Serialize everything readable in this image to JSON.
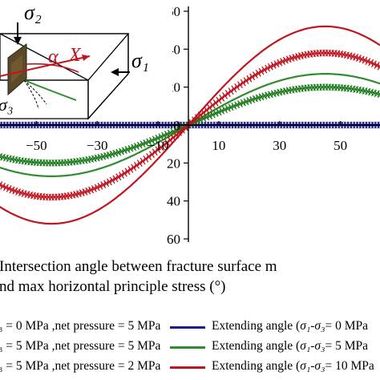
{
  "chart_data": {
    "type": "line",
    "xlabel_line1": "Intersection angle between fracture surface m",
    "xlabel_line2": "nd max horizontal principle stress (°)",
    "x_ticks": [
      "−50",
      "−30",
      "−10",
      "10",
      "30",
      "50"
    ],
    "x_tick_values": [
      -50,
      -30,
      -10,
      10,
      30,
      50
    ],
    "y_ticks": [
      "60",
      "40",
      "20",
      "0",
      "20",
      "40",
      "60"
    ],
    "y_tick_values": [
      60,
      40,
      20,
      0,
      -20,
      -40,
      -60
    ],
    "ylim": [
      -60,
      60
    ],
    "xlim": [
      -63,
      63
    ],
    "series": [
      {
        "key": "ext0",
        "color": "#1a1a8a",
        "style": "line",
        "amplitude": 0
      },
      {
        "key": "ext5",
        "color": "#2e8b2e",
        "style": "line",
        "amplitude": 27
      },
      {
        "key": "ext10",
        "color": "#c0141e",
        "style": "line",
        "amplitude": 52
      },
      {
        "key": "sym0",
        "color": "#1a1a8a",
        "style": "markers",
        "amplitude": 0
      },
      {
        "key": "sym5",
        "color": "#1e7a1e",
        "style": "markers",
        "amplitude": 20
      },
      {
        "key": "sym10",
        "color": "#c0141e",
        "style": "markers",
        "amplitude": 38
      }
    ],
    "legend": {
      "left": [
        {
          "text": "₃ = 0 MPa ,net pressure = 5 MPa",
          "color": "#1a1a8a",
          "style": "markers"
        },
        {
          "text": "₃ = 5 MPa ,net pressure = 5 MPa",
          "color": "#1e7a1e",
          "style": "markers"
        },
        {
          "text": "₃ = 5 MPa ,net pressure = 2 MPa",
          "color": "#c0141e",
          "style": "markers"
        }
      ],
      "right": [
        {
          "prefix": "Extending angle (",
          "sig1": "σ₁",
          "dash": "-",
          "sig3": "σ₃",
          "suffix": "= 0 MPa",
          "color": "#1a1a8a"
        },
        {
          "prefix": "Extending angle (",
          "sig1": "σ₁",
          "dash": "-",
          "sig3": "σ₃",
          "suffix": "= 5 MPa",
          "color": "#2e8b2e"
        },
        {
          "prefix": "Extending angle (",
          "sig1": "σ₁",
          "dash": "-",
          "sig3": "σ₃",
          "suffix": "= 10 MPa",
          "color": "#c0141e"
        }
      ]
    },
    "inset": {
      "sigma1": "σ₁",
      "sigma2": "σ₂",
      "sigma3": "σ₃",
      "alpha": "α",
      "x_axis": "X"
    }
  }
}
